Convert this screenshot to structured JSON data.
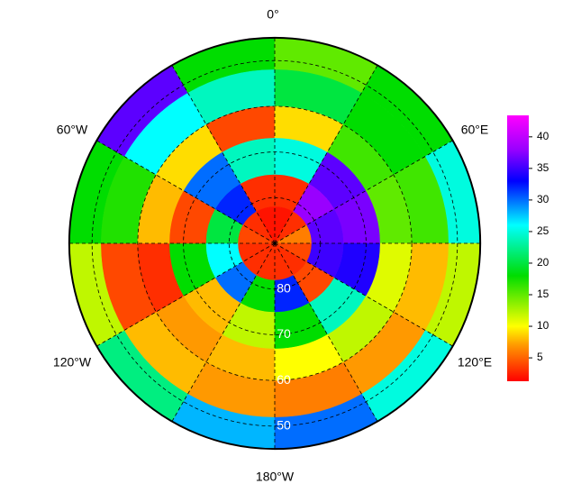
{
  "chart_data": {
    "type": "polar-map",
    "lon_labels": [
      "0°",
      "60°E",
      "120°E",
      "180°W",
      "120°W",
      "60°W"
    ],
    "lat_ticks": [
      80,
      70,
      60,
      50
    ],
    "lon_edges": [
      -180,
      -150,
      -120,
      -90,
      -60,
      -30,
      0,
      30,
      60,
      90,
      120,
      150,
      180
    ],
    "lat_edges": [
      45,
      52,
      60,
      67,
      75,
      82,
      90
    ],
    "values": [
      [
        28,
        22,
        12,
        18,
        36,
        18,
        15,
        18,
        25,
        12,
        25,
        30
      ],
      [
        7,
        8,
        4,
        17,
        26,
        24,
        20,
        18,
        16,
        8,
        7,
        6
      ],
      [
        8,
        7,
        3,
        8,
        9,
        4,
        9,
        16,
        15,
        11,
        12,
        10
      ],
      [
        12,
        8,
        18,
        4,
        30,
        24,
        25,
        36,
        37,
        34,
        24,
        18
      ],
      [
        18,
        30,
        26,
        20,
        32,
        3,
        3,
        38,
        36,
        35,
        4,
        32
      ],
      [
        3,
        3,
        3,
        4,
        3,
        2,
        2,
        3,
        6,
        4,
        3,
        3
      ]
    ],
    "clim": [
      1.3,
      43.4
    ],
    "colorbar_ticks": [
      5,
      10,
      15,
      20,
      25,
      30,
      35,
      40
    ],
    "colorscale": [
      [
        1.3,
        "#ff0000"
      ],
      [
        7,
        "#ff9900"
      ],
      [
        10,
        "#ffff00"
      ],
      [
        18,
        "#00dd00"
      ],
      [
        26,
        "#00ffff"
      ],
      [
        33,
        "#0000ff"
      ],
      [
        38,
        "#9900ff"
      ],
      [
        43.4,
        "#ff00ff"
      ]
    ]
  }
}
